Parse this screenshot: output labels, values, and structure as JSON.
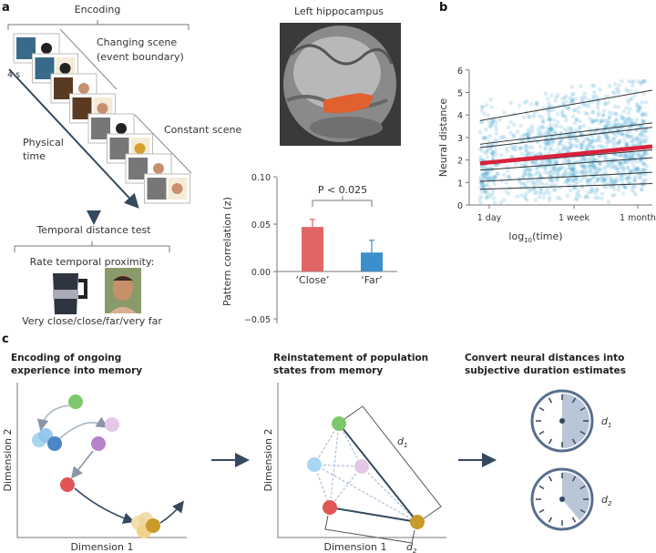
{
  "panel_a": {
    "label": "a",
    "encoding_title": "Encoding",
    "duration_label": "4 s",
    "changing_scene_line1": "Changing scene",
    "changing_scene_line2": "(event boundary)",
    "constant_scene": "Constant scene",
    "physical_time_line1": "Physical",
    "physical_time_line2": "time",
    "test_title": "Temporal distance test",
    "rate_prompt": "Rate temporal proximity:",
    "scale_options": "Very close/close/far/very far",
    "brain_title": "Left hippocampus"
  },
  "panel_b": {
    "label": "b"
  },
  "panel_c": {
    "label": "c",
    "col1_title_line1": "Encoding of ongoing",
    "col1_title_line2": "experience into memory",
    "col2_title_line1": "Reinstatement of population",
    "col2_title_line2": "states from memory",
    "col3_title_line1": "Convert neural distances into",
    "col3_title_line2": "subjective duration estimates",
    "x_axis": "Dimension 1",
    "y_axis": "Dimension 2",
    "d1_base": "d",
    "d1_sub": "1",
    "d2_base": "d",
    "d2_sub": "2"
  },
  "colors": {
    "close": "#e06666",
    "far": "#3d8fcb",
    "regression_mean": "#d9223c",
    "scatter": "#3399cc",
    "arrow": "#34495e"
  },
  "chart_data": [
    {
      "type": "bar",
      "ylabel": "Pattern correlation (z)",
      "categories": [
        "‘Close’",
        "‘Far’"
      ],
      "values": [
        0.047,
        0.02
      ],
      "errors": [
        0.008,
        0.013
      ],
      "yticks": [
        "0.10",
        "0.05",
        "0.00",
        "−0.05"
      ],
      "ylim": [
        -0.05,
        0.1
      ],
      "annotation": "P < 0.025"
    },
    {
      "type": "scatter",
      "ylabel": "Neural distance",
      "xlabel_base": "log",
      "xlabel_sub": "10",
      "xlabel_rest": "(time)",
      "xticks": [
        "1 day",
        "1 week",
        "1 month"
      ],
      "yticks": [
        "0",
        "1",
        "2",
        "3",
        "4",
        "5",
        "6"
      ],
      "ylim": [
        0,
        6
      ],
      "regression_lines": [
        {
          "start": 3.75,
          "end": 5.1
        },
        {
          "start": 2.7,
          "end": 3.65
        },
        {
          "start": 2.55,
          "end": 3.45
        },
        {
          "start": 1.8,
          "end": 2.45
        },
        {
          "start": 1.55,
          "end": 2.1
        },
        {
          "start": 1.05,
          "end": 1.45
        },
        {
          "start": 0.7,
          "end": 0.95
        }
      ],
      "mean_line": {
        "start": 1.85,
        "end": 2.6
      }
    }
  ]
}
